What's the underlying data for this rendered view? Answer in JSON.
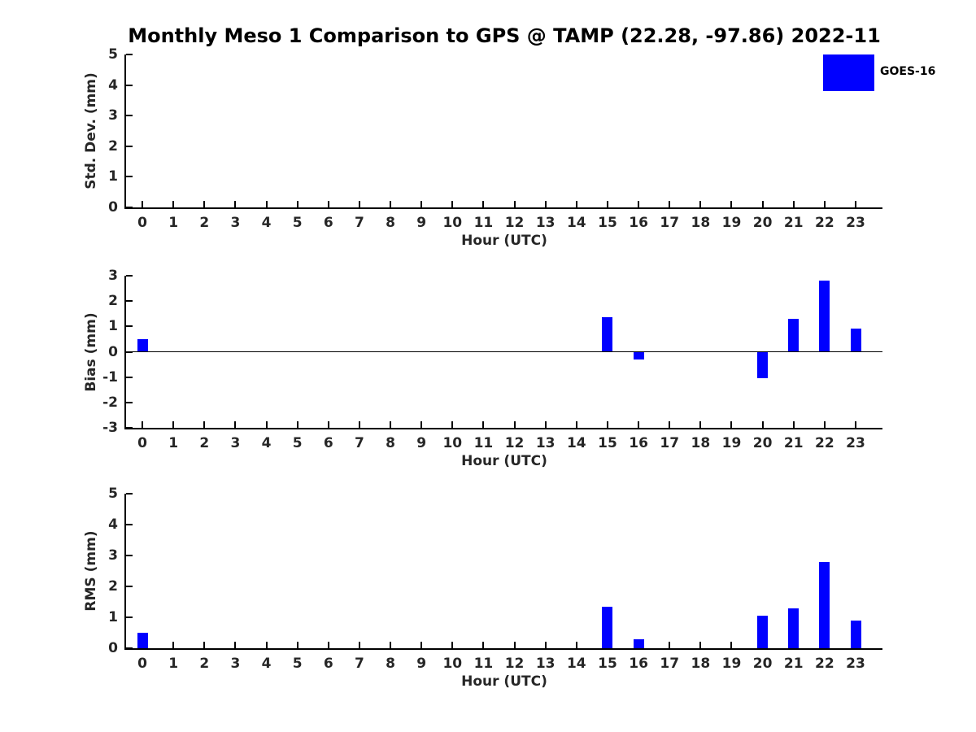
{
  "title": "Monthly Meso 1 Comparison to GPS @ TAMP (22.28, -97.86) 2022-11",
  "legend": {
    "label": "GOES-16",
    "color": "#0000ff",
    "position": "top-right"
  },
  "colors": {
    "bar": "#0000ff",
    "axis_line": "#000000",
    "text": "#262626",
    "title": "#000000"
  },
  "chart_data": [
    {
      "name": "std-dev",
      "type": "bar",
      "title": "",
      "xlabel": "Hour (UTC)",
      "ylabel": "Std. Dev. (mm)",
      "ylim": [
        0,
        5
      ],
      "yticks": [
        0,
        1,
        2,
        3,
        4,
        5
      ],
      "x": [
        0,
        1,
        2,
        3,
        4,
        5,
        6,
        7,
        8,
        9,
        10,
        11,
        12,
        13,
        14,
        15,
        16,
        17,
        18,
        19,
        20,
        21,
        22,
        23
      ],
      "values": [
        0,
        0,
        0,
        0,
        0,
        0,
        0,
        0,
        0,
        0,
        0,
        0,
        0,
        0,
        0,
        0,
        0,
        0,
        0,
        0,
        0,
        0,
        0,
        0
      ],
      "grid": false,
      "series_name": "GOES-16"
    },
    {
      "name": "bias",
      "type": "bar",
      "title": "",
      "xlabel": "Hour (UTC)",
      "ylabel": "Bias (mm)",
      "ylim": [
        -3,
        3
      ],
      "yticks": [
        3,
        2,
        1,
        0,
        -1,
        -2,
        -3
      ],
      "zero_line": true,
      "x": [
        0,
        1,
        2,
        3,
        4,
        5,
        6,
        7,
        8,
        9,
        10,
        11,
        12,
        13,
        14,
        15,
        16,
        17,
        18,
        19,
        20,
        21,
        22,
        23
      ],
      "values": [
        0.5,
        0,
        0,
        0,
        0,
        0,
        0,
        0,
        0,
        0,
        0,
        0,
        0,
        0,
        0,
        1.35,
        -0.3,
        0,
        0,
        0,
        -1.05,
        1.3,
        2.8,
        0.9
      ],
      "grid": false,
      "series_name": "GOES-16"
    },
    {
      "name": "rms",
      "type": "bar",
      "title": "",
      "xlabel": "Hour (UTC)",
      "ylabel": "RMS (mm)",
      "ylim": [
        0,
        5
      ],
      "yticks": [
        0,
        1,
        2,
        3,
        4,
        5
      ],
      "x": [
        0,
        1,
        2,
        3,
        4,
        5,
        6,
        7,
        8,
        9,
        10,
        11,
        12,
        13,
        14,
        15,
        16,
        17,
        18,
        19,
        20,
        21,
        22,
        23
      ],
      "values": [
        0.5,
        0,
        0,
        0,
        0,
        0,
        0,
        0,
        0,
        0,
        0,
        0,
        0,
        0,
        0,
        1.35,
        0.3,
        0,
        0,
        0,
        1.05,
        1.3,
        2.8,
        0.9
      ],
      "grid": false,
      "series_name": "GOES-16"
    }
  ]
}
